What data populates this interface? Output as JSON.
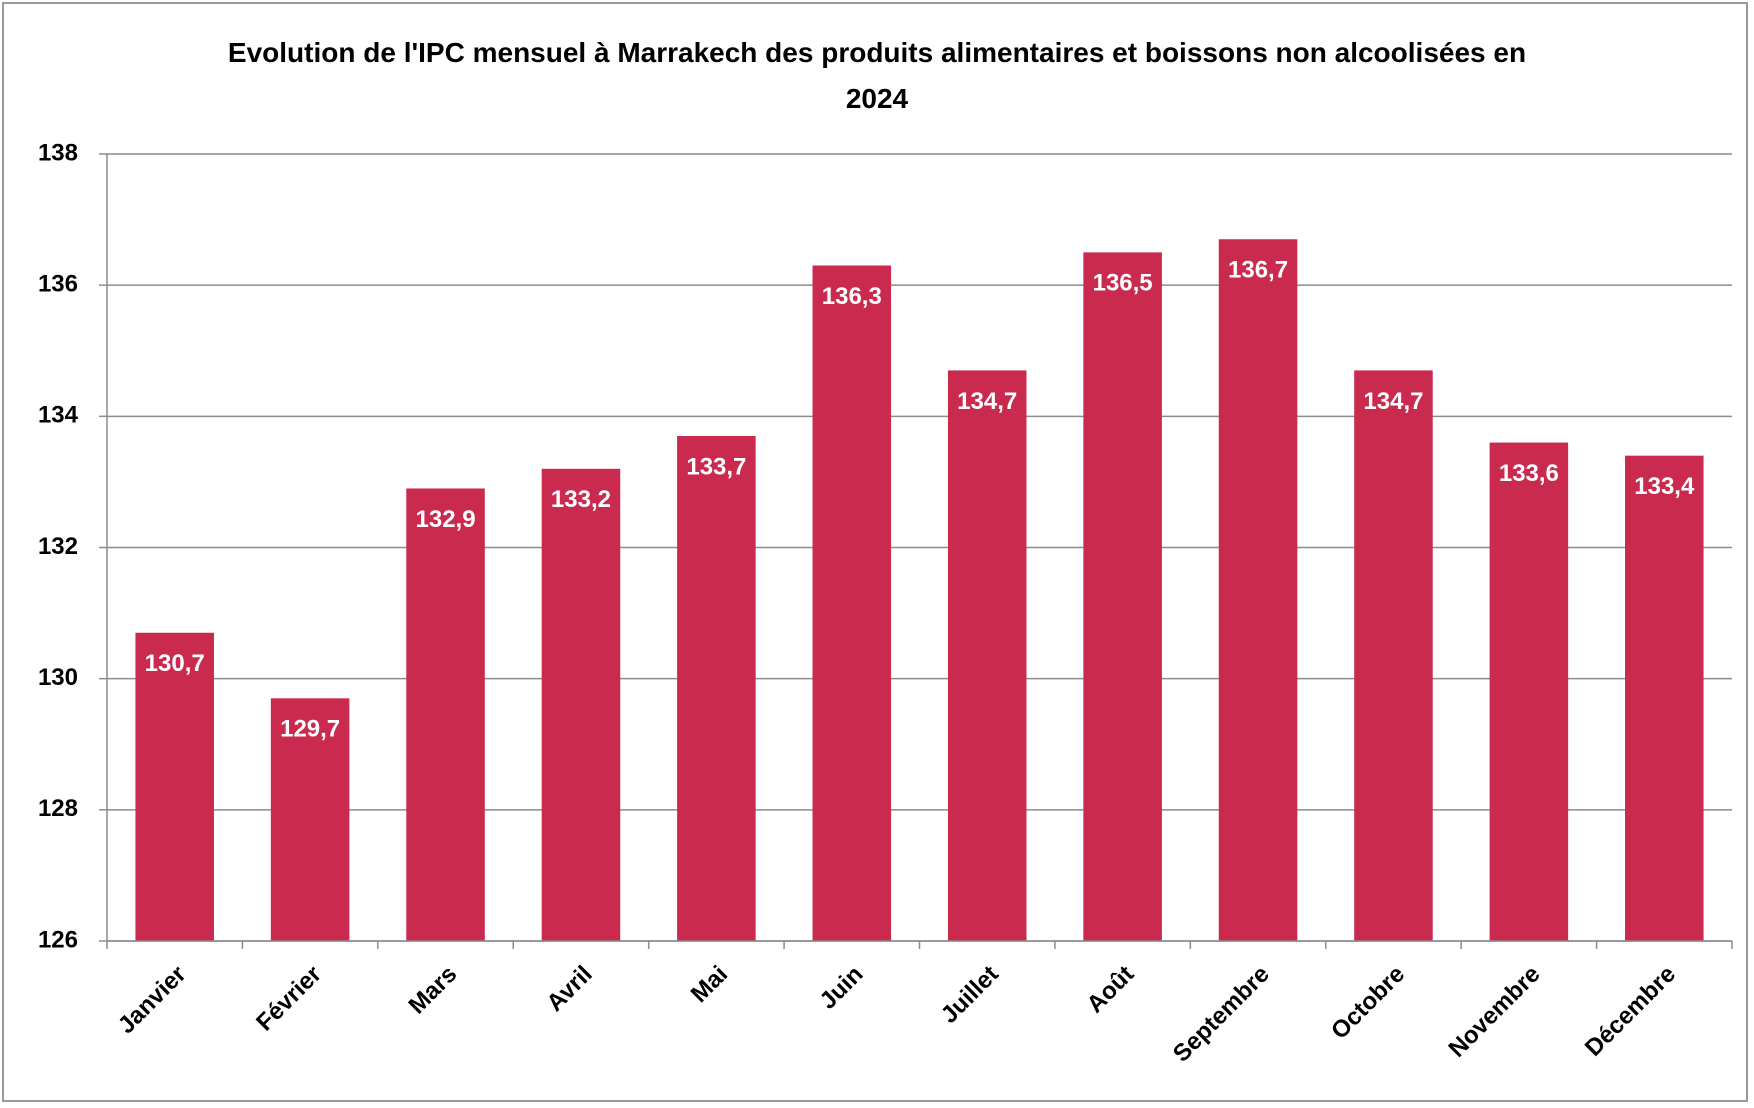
{
  "chart_data": {
    "type": "bar",
    "title": "Evolution de l'IPC mensuel à Marrakech des produits alimentaires et boissons non alcoolisées en 2024",
    "categories": [
      "Janvier",
      "Février",
      "Mars",
      "Avril",
      "Mai",
      "Juin",
      "Juillet",
      "Août",
      "Septembre",
      "Octobre",
      "Novembre",
      "Décembre"
    ],
    "values": [
      130.7,
      129.7,
      132.9,
      133.2,
      133.7,
      136.3,
      134.7,
      136.5,
      136.7,
      134.7,
      133.6,
      133.4
    ],
    "value_labels": [
      "130,7",
      "129,7",
      "132,9",
      "133,2",
      "133,7",
      "136,3",
      "134,7",
      "136,5",
      "136,7",
      "134,7",
      "133,6",
      "133,4"
    ],
    "color": "#c92a4e",
    "ylim": [
      126,
      138
    ],
    "yticks": [
      126,
      128,
      130,
      132,
      134,
      136,
      138
    ],
    "grid": true
  }
}
